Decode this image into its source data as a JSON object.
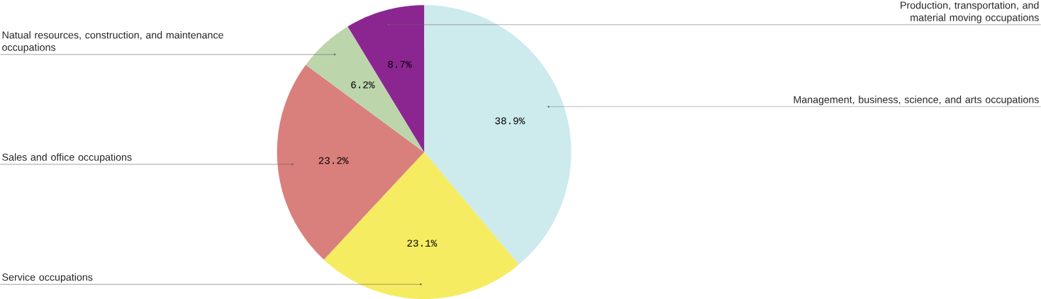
{
  "chart_data": {
    "type": "pie",
    "categories": [
      "Management, business, science, and arts occupations",
      "Service occupations",
      "Sales and office occupations",
      "Natual resources, construction, and maintenance occupations",
      "Production, transportation, and material moving occupations"
    ],
    "values": [
      38.9,
      23.1,
      23.2,
      6.2,
      8.7
    ],
    "value_labels": [
      "38.9%",
      "23.1%",
      "23.2%",
      "6.2%",
      "8.7%"
    ],
    "colors": [
      "#cdeaed",
      "#f5ec62",
      "#d97f7c",
      "#bcd5ab",
      "#8b2690"
    ]
  }
}
